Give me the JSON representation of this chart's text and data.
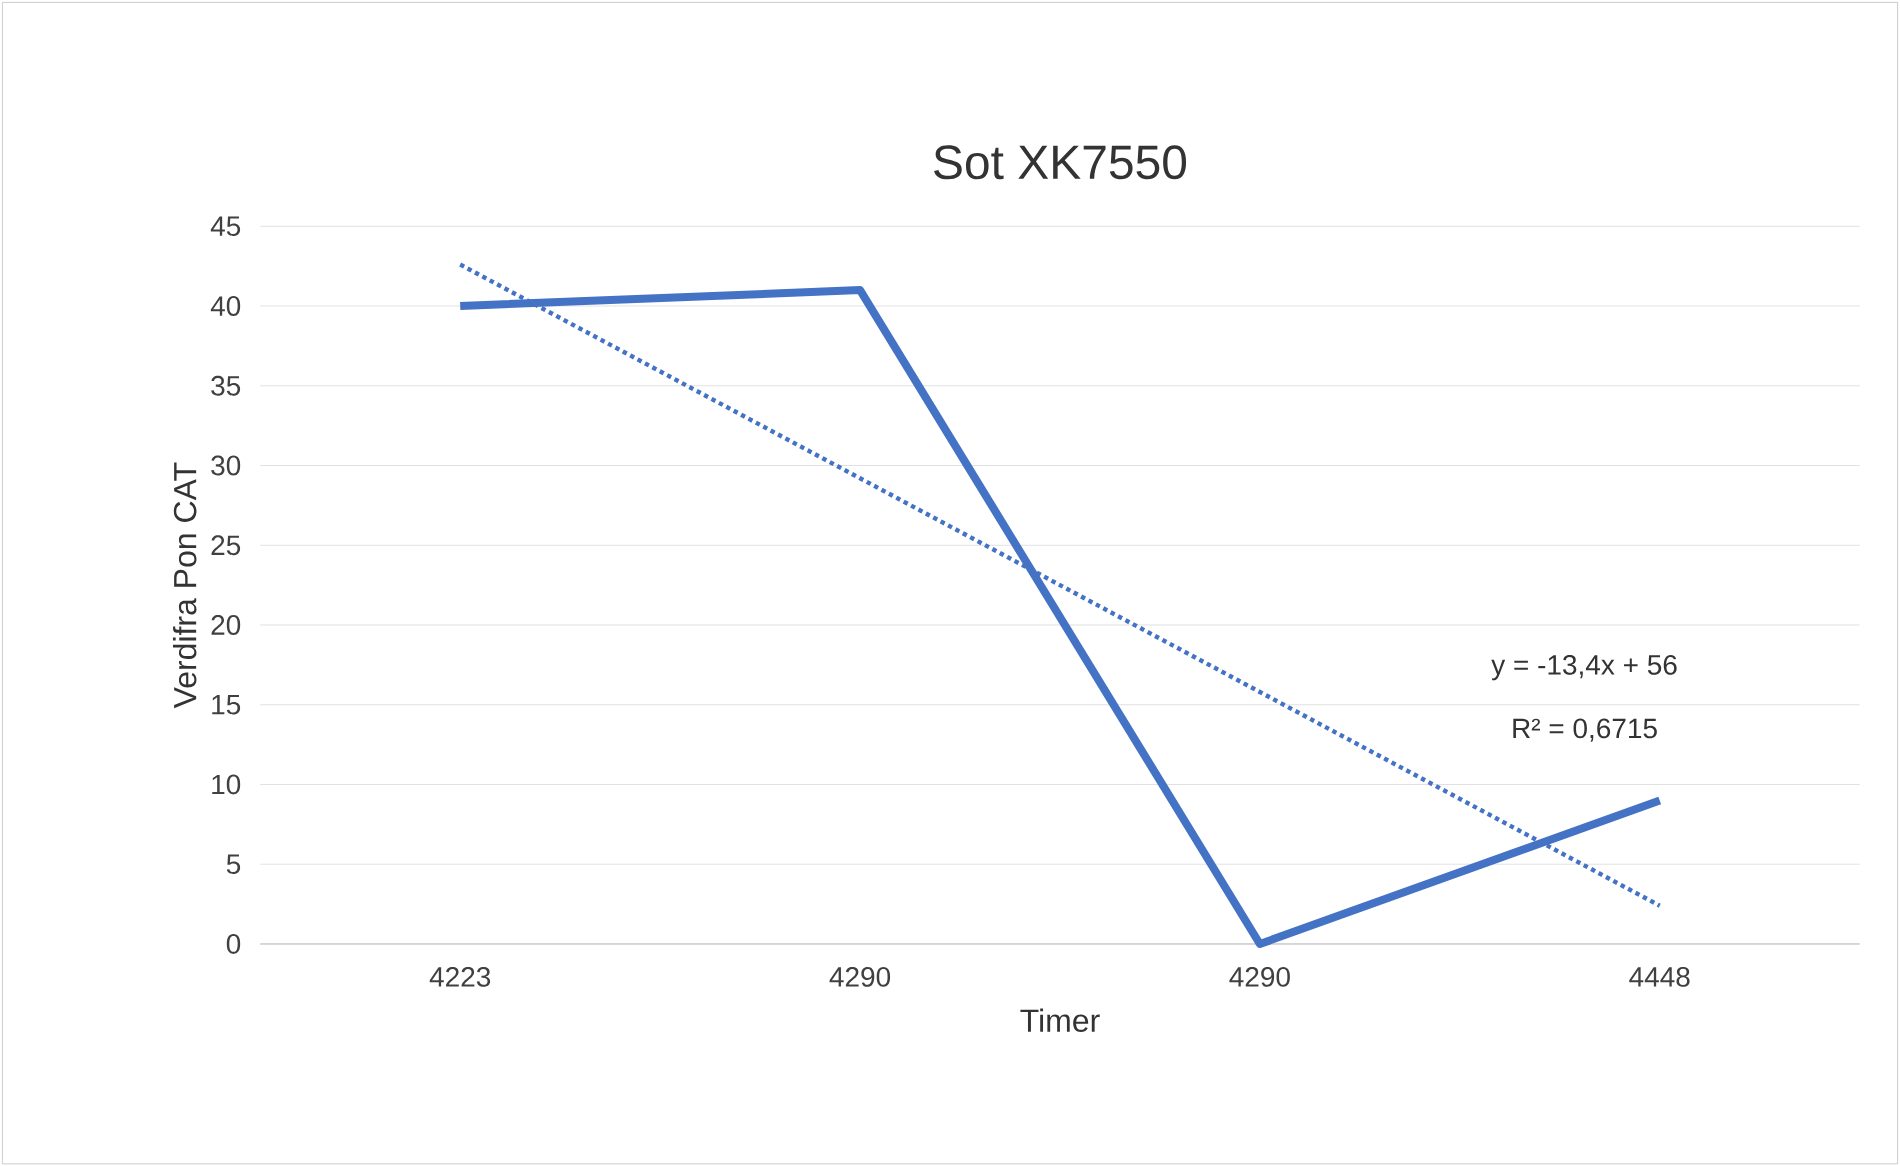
{
  "chart_data": {
    "type": "line",
    "title": "Sot XK7550",
    "xlabel": "Timer",
    "ylabel": "Verdifra Pon CAT",
    "categories": [
      "4223",
      "4290",
      "4290",
      "4448"
    ],
    "series": [
      {
        "color": "#4472c4",
        "values": [
          40,
          41,
          0,
          9
        ],
        "line_style": "solid"
      },
      {
        "color": "#4472c4",
        "values": [
          42.6,
          29.2,
          15.8,
          2.4
        ],
        "line_style": "dotted"
      }
    ],
    "ylim": [
      0,
      45
    ],
    "yticks": [
      0,
      5,
      10,
      15,
      20,
      25,
      30,
      35,
      40,
      45
    ],
    "grid": "y",
    "marker": "none",
    "annotations": [
      "y = -13,4x + 56",
      "R² = 0,6715"
    ]
  }
}
